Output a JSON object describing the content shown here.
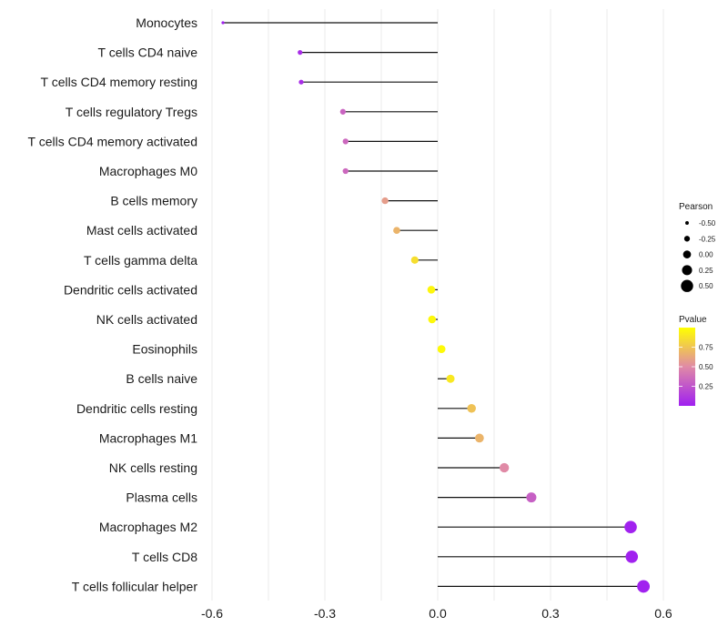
{
  "chart_data": {
    "type": "lollipop",
    "title": "",
    "xlabel": "",
    "ylabel": "",
    "xlim": [
      -0.62,
      0.65
    ],
    "xticks": [
      -0.6,
      -0.3,
      0.0,
      0.3,
      0.6
    ],
    "xtick_labels": [
      "-0.6",
      "-0.3",
      "0.0",
      "0.3",
      "0.6"
    ],
    "grid": true,
    "categories": [
      "Monocytes",
      "T cells CD4 naive",
      "T cells CD4 memory resting",
      "T cells regulatory  Tregs ",
      "T cells CD4 memory activated",
      "Macrophages M0",
      "B cells memory",
      "Mast cells activated",
      "T cells gamma delta",
      "Dendritic cells activated",
      "NK cells activated",
      "Eosinophils",
      "B cells naive",
      "Dendritic cells resting",
      "Macrophages M1",
      "NK cells resting",
      "Plasma cells",
      "Macrophages M2",
      "T cells CD8",
      "T cells follicular helper"
    ],
    "pearson": [
      -0.571,
      -0.366,
      -0.363,
      -0.252,
      -0.245,
      -0.245,
      -0.14,
      -0.109,
      -0.061,
      -0.017,
      -0.015,
      0.01,
      0.034,
      0.09,
      0.111,
      0.177,
      0.249,
      0.513,
      0.516,
      0.547
    ],
    "pvalue": [
      0.0,
      0.06,
      0.06,
      0.32,
      0.34,
      0.34,
      0.58,
      0.68,
      0.86,
      0.96,
      0.97,
      0.98,
      0.9,
      0.74,
      0.68,
      0.5,
      0.3,
      0.01,
      0.01,
      0.01
    ],
    "legend": {
      "position": "right",
      "size_legend": {
        "title": "Pearson",
        "values": [
          -0.5,
          -0.25,
          0.0,
          0.25,
          0.5
        ],
        "labels": [
          "-0.50",
          "-0.25",
          "0.00",
          "0.25",
          "0.50"
        ]
      },
      "color_legend": {
        "title": "Pvalue",
        "range": [
          0.0,
          1.0
        ],
        "ticks": [
          0.25,
          0.5,
          0.75
        ],
        "labels": [
          "0.25",
          "0.50",
          "0.75"
        ],
        "low_color": "#a020f0",
        "mid_color": "#e08aa6",
        "high_color": "#ffff00"
      }
    }
  }
}
